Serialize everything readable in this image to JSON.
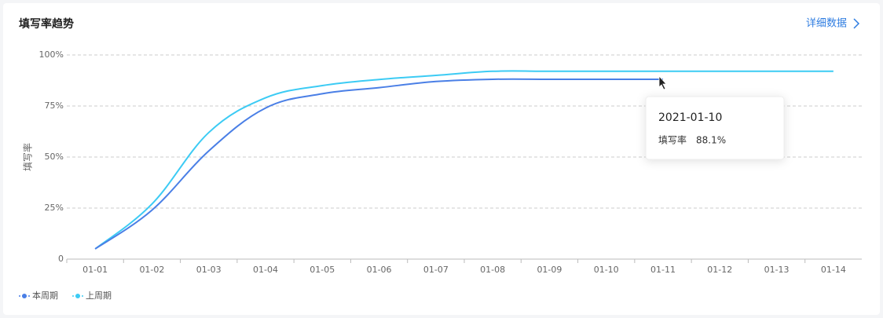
{
  "chart_data": {
    "type": "line",
    "title": "填写率趋势",
    "link": "详细数据",
    "ylabel": "填写率",
    "categories": [
      "01-01",
      "01-02",
      "01-03",
      "01-04",
      "01-05",
      "01-06",
      "01-07",
      "01-08",
      "01-09",
      "01-10",
      "01-11",
      "01-12",
      "01-13",
      "01-14"
    ],
    "series": [
      {
        "name": "本周期",
        "color": "#4a7fe6",
        "values": [
          5,
          24,
          53,
          74,
          81,
          84,
          87,
          88.1,
          88.1,
          88.1,
          88.1,
          null,
          null,
          null
        ]
      },
      {
        "name": "上周期",
        "color": "#3ccbf4",
        "values": [
          5,
          27,
          62,
          79,
          85,
          88,
          90,
          92,
          92,
          92,
          92,
          92,
          92,
          92
        ]
      }
    ],
    "ylim": [
      0,
      100
    ],
    "yticks": [
      0,
      {
        "value": 25,
        "label": "25%"
      },
      {
        "value": 50,
        "label": "50%"
      },
      {
        "value": 75,
        "label": "75%"
      },
      {
        "value": 100,
        "label": "100%"
      }
    ],
    "grid": true,
    "legend": "bottom-left",
    "tooltip": {
      "title": "2021-01-10",
      "label": "填写率",
      "value": 88.1,
      "value_label": "88.1%"
    }
  }
}
